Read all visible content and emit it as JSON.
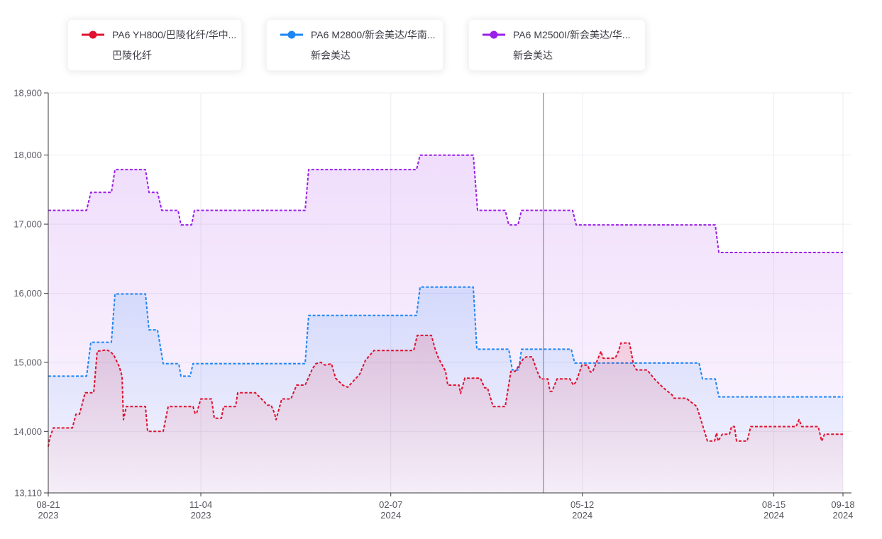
{
  "legend": {
    "items": [
      {
        "label": "PA6 YH800/巴陵化纤/华中...",
        "sublabel": "巴陵化纤",
        "color": "#e0122f"
      },
      {
        "label": "PA6 M2800/新会美达/华南...",
        "sublabel": "新会美达",
        "color": "#1d86f5"
      },
      {
        "label": "PA6 M2500I/新会美达/华...",
        "sublabel": "新会美达",
        "color": "#9a1fe8"
      }
    ]
  },
  "chart_data": {
    "type": "line",
    "variant": "step-area-dashed",
    "grid": true,
    "legend_position": "top",
    "y_axis": {
      "min": 13110,
      "max": 18900,
      "ticks": [
        {
          "value": 13110,
          "label": "13,110"
        },
        {
          "value": 14000,
          "label": "14,000"
        },
        {
          "value": 15000,
          "label": "15,000"
        },
        {
          "value": 16000,
          "label": "16,000"
        },
        {
          "value": 17000,
          "label": "17,000"
        },
        {
          "value": 18000,
          "label": "18,000"
        },
        {
          "value": 18900,
          "label": "18,900"
        }
      ]
    },
    "x_axis": {
      "ticks": [
        {
          "t": 0.0,
          "label": "08-21",
          "year": "2023"
        },
        {
          "t": 0.192,
          "label": "11-04",
          "year": "2023"
        },
        {
          "t": 0.431,
          "label": "02-07",
          "year": "2024"
        },
        {
          "t": 0.672,
          "label": "05-12",
          "year": "2024"
        },
        {
          "t": 0.913,
          "label": "08-15",
          "year": "2024"
        },
        {
          "t": 1.0,
          "label": "09-18",
          "year": "2024"
        }
      ]
    },
    "marker_line_t": 0.623,
    "series": [
      {
        "name": "PA6 M2500I/新会美达/华...",
        "company": "新会美达",
        "color": "#9a1fe8",
        "points": [
          [
            0,
            17200
          ],
          [
            0.0482,
            17200
          ],
          [
            0.0536,
            17460
          ],
          [
            0.0795,
            17460
          ],
          [
            0.0839,
            17790
          ],
          [
            0.1223,
            17790
          ],
          [
            0.1268,
            17460
          ],
          [
            0.1375,
            17460
          ],
          [
            0.1429,
            17200
          ],
          [
            0.1634,
            17200
          ],
          [
            0.167,
            16990
          ],
          [
            0.1804,
            16990
          ],
          [
            0.1839,
            17200
          ],
          [
            0.3232,
            17200
          ],
          [
            0.3277,
            17790
          ],
          [
            0.4634,
            17790
          ],
          [
            0.4679,
            18000
          ],
          [
            0.5348,
            18000
          ],
          [
            0.5402,
            17200
          ],
          [
            0.575,
            17200
          ],
          [
            0.5795,
            16990
          ],
          [
            0.5911,
            16990
          ],
          [
            0.5955,
            17200
          ],
          [
            0.6598,
            17200
          ],
          [
            0.6643,
            16990
          ],
          [
            0.8393,
            16990
          ],
          [
            0.8438,
            16590
          ],
          [
            1,
            16590
          ]
        ]
      },
      {
        "name": "PA6 M2800/新会美达/华南...",
        "company": "新会美达",
        "color": "#1d86f5",
        "points": [
          [
            0,
            14800
          ],
          [
            0.0482,
            14800
          ],
          [
            0.0536,
            15290
          ],
          [
            0.0795,
            15290
          ],
          [
            0.0839,
            15990
          ],
          [
            0.1223,
            15990
          ],
          [
            0.1268,
            15470
          ],
          [
            0.1375,
            15470
          ],
          [
            0.1446,
            14980
          ],
          [
            0.1643,
            14980
          ],
          [
            0.167,
            14800
          ],
          [
            0.1786,
            14800
          ],
          [
            0.1821,
            14980
          ],
          [
            0.3232,
            14980
          ],
          [
            0.3277,
            15680
          ],
          [
            0.4634,
            15680
          ],
          [
            0.4679,
            16090
          ],
          [
            0.5348,
            16090
          ],
          [
            0.5393,
            15190
          ],
          [
            0.5795,
            15190
          ],
          [
            0.5839,
            14890
          ],
          [
            0.592,
            14890
          ],
          [
            0.5955,
            15190
          ],
          [
            0.658,
            15190
          ],
          [
            0.6625,
            14990
          ],
          [
            0.8188,
            14990
          ],
          [
            0.8232,
            14760
          ],
          [
            0.8393,
            14760
          ],
          [
            0.8438,
            14500
          ],
          [
            1,
            14500
          ]
        ]
      },
      {
        "name": "PA6 YH800/巴陵化纤/华中...",
        "company": "巴陵化纤",
        "color": "#e0122f",
        "points": [
          [
            0,
            13780
          ],
          [
            0.0018,
            13900
          ],
          [
            0.0063,
            14050
          ],
          [
            0.0304,
            14050
          ],
          [
            0.0348,
            14250
          ],
          [
            0.0393,
            14250
          ],
          [
            0.0464,
            14560
          ],
          [
            0.0571,
            14560
          ],
          [
            0.0616,
            15160
          ],
          [
            0.0732,
            15180
          ],
          [
            0.0777,
            15160
          ],
          [
            0.0821,
            15110
          ],
          [
            0.0893,
            14940
          ],
          [
            0.0929,
            14800
          ],
          [
            0.0946,
            14170
          ],
          [
            0.0982,
            14360
          ],
          [
            0.1223,
            14360
          ],
          [
            0.125,
            14000
          ],
          [
            0.1446,
            14000
          ],
          [
            0.1509,
            14360
          ],
          [
            0.1821,
            14360
          ],
          [
            0.1848,
            14260
          ],
          [
            0.1866,
            14260
          ],
          [
            0.192,
            14470
          ],
          [
            0.2054,
            14470
          ],
          [
            0.2089,
            14190
          ],
          [
            0.2179,
            14190
          ],
          [
            0.2205,
            14360
          ],
          [
            0.2357,
            14360
          ],
          [
            0.2384,
            14560
          ],
          [
            0.2607,
            14560
          ],
          [
            0.2759,
            14380
          ],
          [
            0.2804,
            14380
          ],
          [
            0.2848,
            14260
          ],
          [
            0.2866,
            14170
          ],
          [
            0.2938,
            14470
          ],
          [
            0.3054,
            14470
          ],
          [
            0.3125,
            14670
          ],
          [
            0.3232,
            14670
          ],
          [
            0.3321,
            14900
          ],
          [
            0.3366,
            14980
          ],
          [
            0.3429,
            15000
          ],
          [
            0.3482,
            14960
          ],
          [
            0.3563,
            14980
          ],
          [
            0.3616,
            14770
          ],
          [
            0.3705,
            14670
          ],
          [
            0.3768,
            14640
          ],
          [
            0.392,
            14830
          ],
          [
            0.3991,
            15030
          ],
          [
            0.4098,
            15170
          ],
          [
            0.4598,
            15170
          ],
          [
            0.4643,
            15390
          ],
          [
            0.4821,
            15390
          ],
          [
            0.4866,
            15200
          ],
          [
            0.4911,
            15060
          ],
          [
            0.5,
            14870
          ],
          [
            0.5027,
            14670
          ],
          [
            0.517,
            14670
          ],
          [
            0.5188,
            14550
          ],
          [
            0.5241,
            14770
          ],
          [
            0.5438,
            14770
          ],
          [
            0.5491,
            14630
          ],
          [
            0.5527,
            14630
          ],
          [
            0.5571,
            14460
          ],
          [
            0.5598,
            14360
          ],
          [
            0.575,
            14360
          ],
          [
            0.5821,
            14870
          ],
          [
            0.5875,
            14870
          ],
          [
            0.5982,
            15060
          ],
          [
            0.6018,
            15080
          ],
          [
            0.6089,
            15080
          ],
          [
            0.6152,
            14870
          ],
          [
            0.6196,
            14760
          ],
          [
            0.6286,
            14760
          ],
          [
            0.6313,
            14580
          ],
          [
            0.6339,
            14580
          ],
          [
            0.6402,
            14760
          ],
          [
            0.6563,
            14760
          ],
          [
            0.6607,
            14670
          ],
          [
            0.6643,
            14720
          ],
          [
            0.6714,
            14960
          ],
          [
            0.6786,
            14960
          ],
          [
            0.6821,
            14860
          ],
          [
            0.6848,
            14860
          ],
          [
            0.692,
            15060
          ],
          [
            0.6955,
            15160
          ],
          [
            0.6982,
            15060
          ],
          [
            0.7134,
            15060
          ],
          [
            0.7179,
            15170
          ],
          [
            0.7205,
            15280
          ],
          [
            0.7313,
            15280
          ],
          [
            0.7366,
            14960
          ],
          [
            0.7402,
            14890
          ],
          [
            0.7536,
            14890
          ],
          [
            0.7634,
            14750
          ],
          [
            0.7741,
            14630
          ],
          [
            0.7848,
            14530
          ],
          [
            0.7875,
            14480
          ],
          [
            0.8027,
            14480
          ],
          [
            0.8161,
            14360
          ],
          [
            0.8295,
            13860
          ],
          [
            0.8384,
            13860
          ],
          [
            0.8411,
            13980
          ],
          [
            0.8429,
            13860
          ],
          [
            0.8482,
            13960
          ],
          [
            0.8571,
            13960
          ],
          [
            0.8598,
            14070
          ],
          [
            0.8634,
            14070
          ],
          [
            0.8661,
            13860
          ],
          [
            0.8795,
            13860
          ],
          [
            0.8839,
            14070
          ],
          [
            0.9411,
            14070
          ],
          [
            0.9446,
            14170
          ],
          [
            0.9482,
            14070
          ],
          [
            0.9688,
            14070
          ],
          [
            0.9732,
            13860
          ],
          [
            0.9768,
            13960
          ],
          [
            1,
            13960
          ]
        ]
      }
    ]
  }
}
